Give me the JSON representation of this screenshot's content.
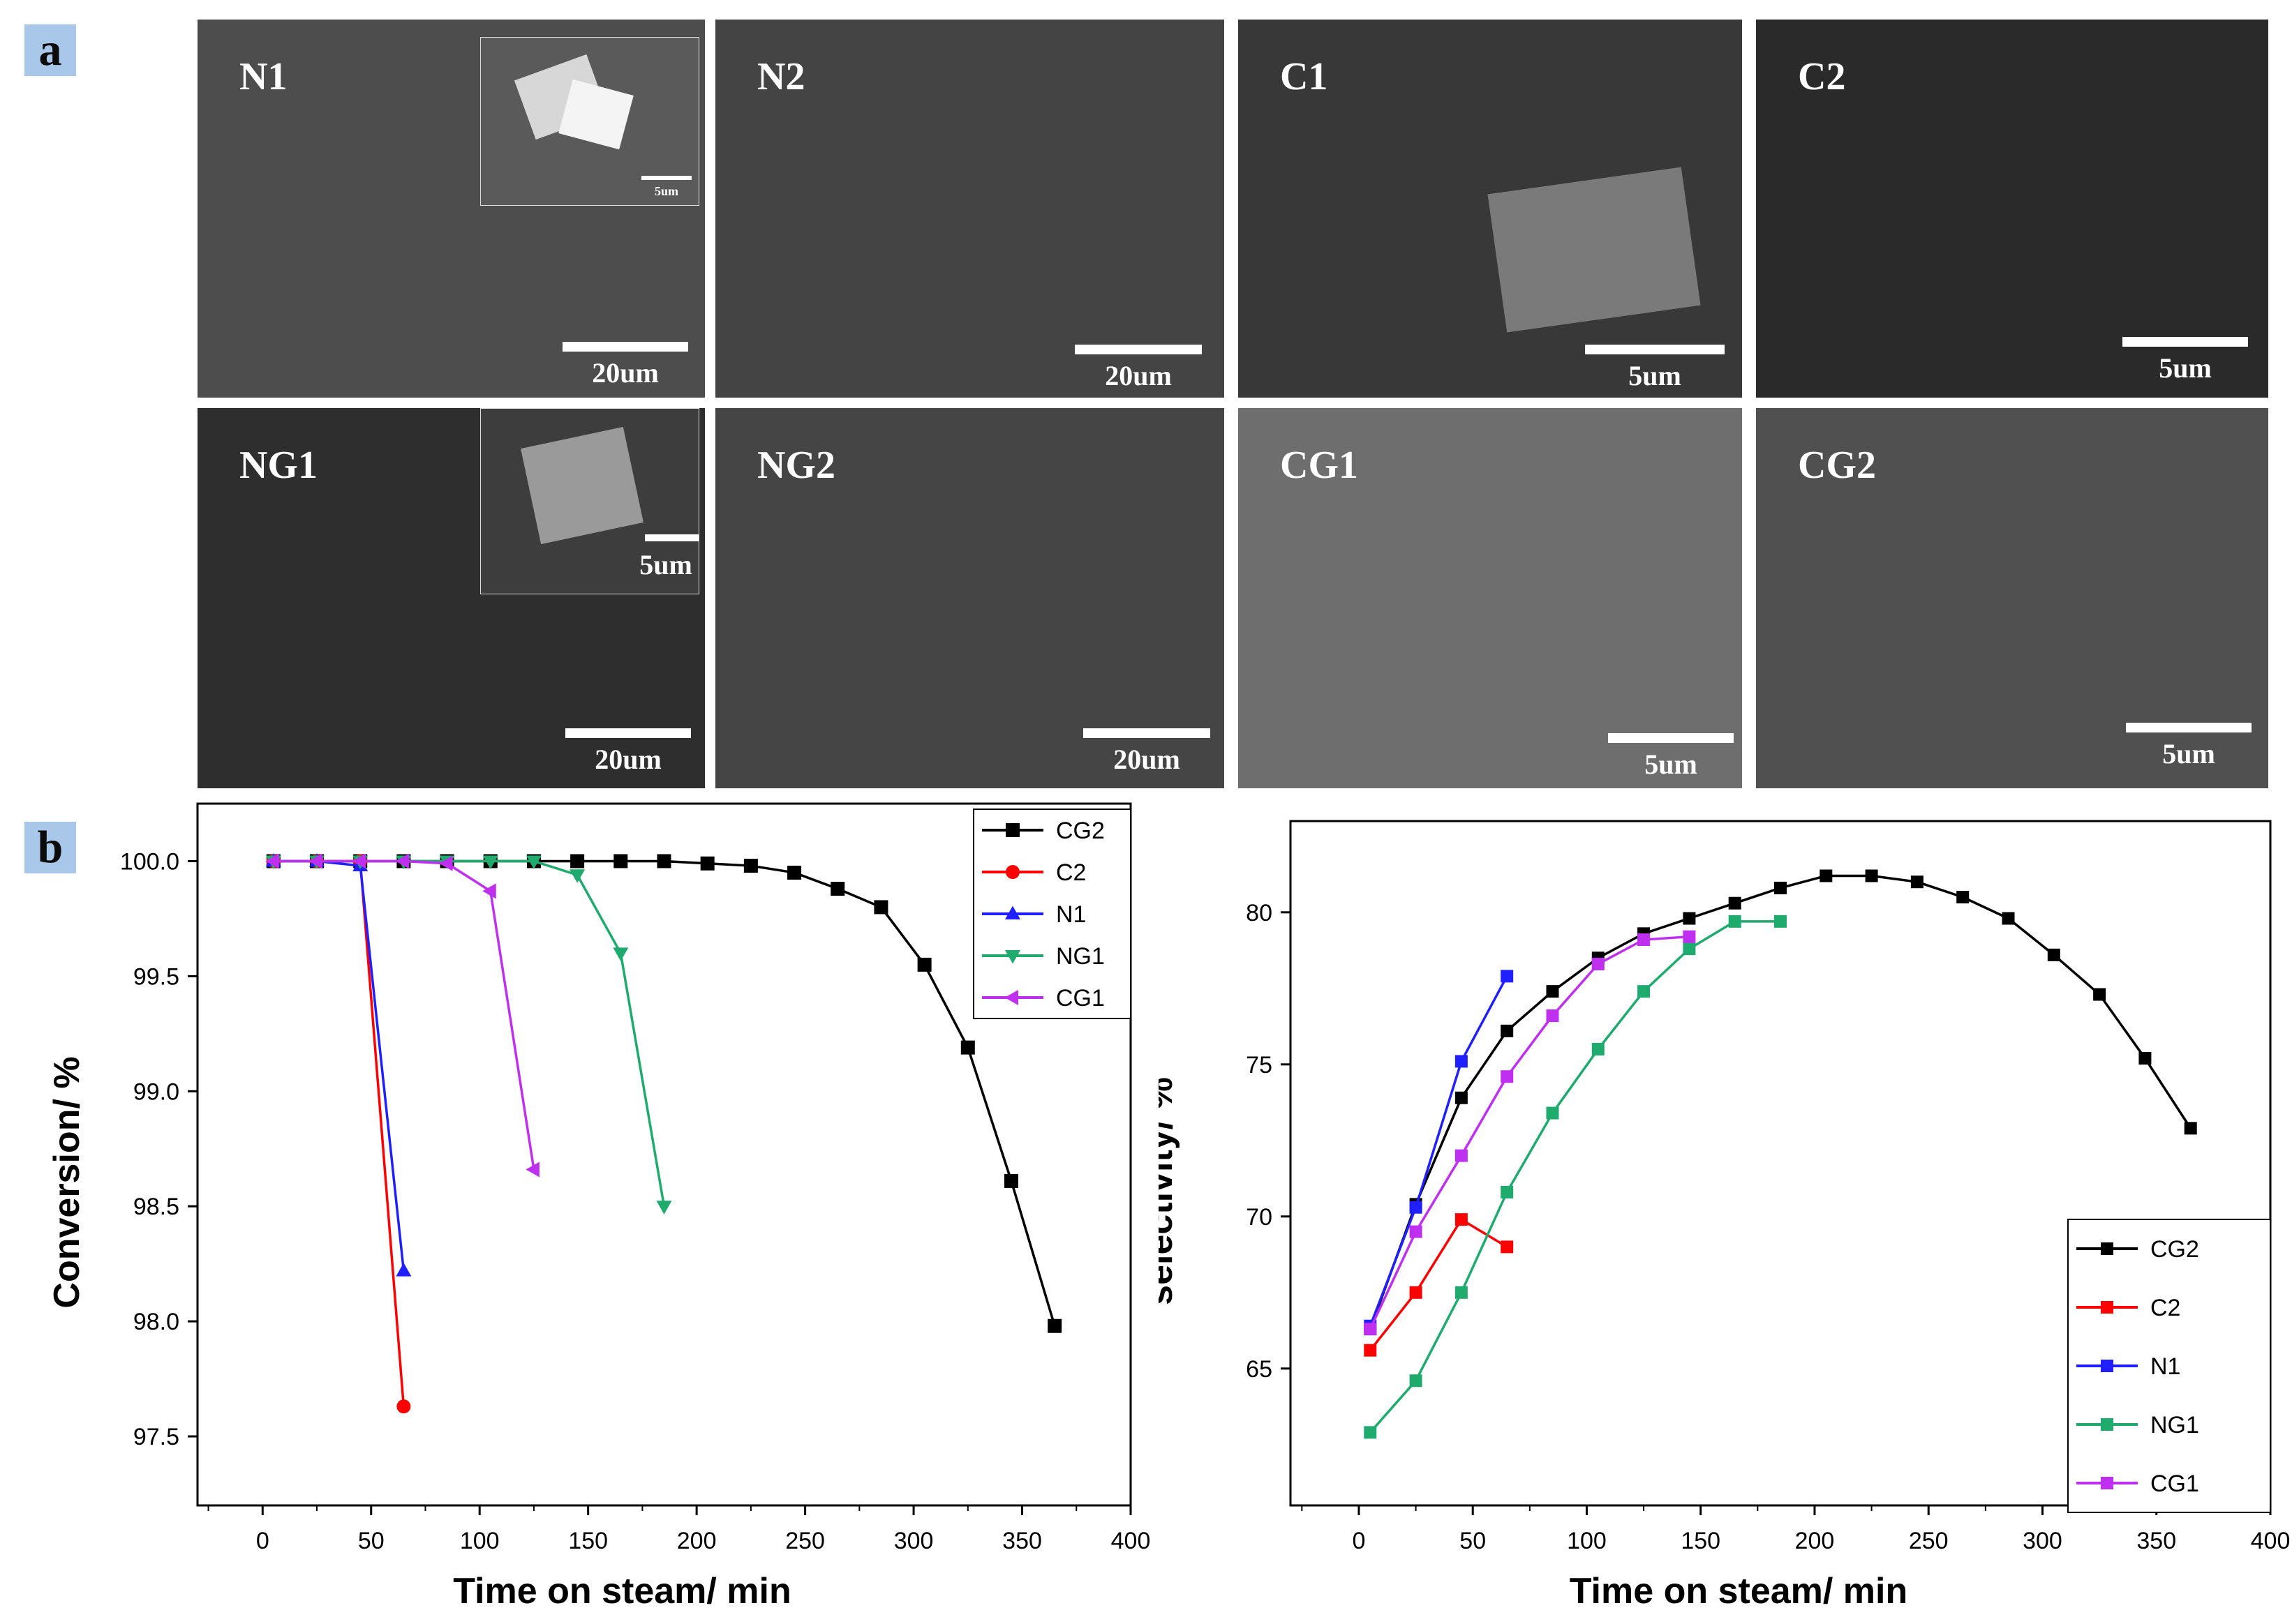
{
  "panel_a": {
    "label": "a",
    "micrographs": [
      {
        "name": "N1",
        "scale": "20um",
        "inset_scale": "5um"
      },
      {
        "name": "N2",
        "scale": "20um"
      },
      {
        "name": "C1",
        "scale": "5um"
      },
      {
        "name": "C2",
        "scale": "5um"
      },
      {
        "name": "NG1",
        "scale": "20um",
        "inset_scale": "5um"
      },
      {
        "name": "NG2",
        "scale": "20um"
      },
      {
        "name": "CG1",
        "scale": "5um"
      },
      {
        "name": "CG2",
        "scale": "5um"
      }
    ]
  },
  "panel_b": {
    "label": "b"
  },
  "chart_data": [
    {
      "type": "line",
      "xlabel": "Time on steam/ min",
      "ylabel": "Conversion/ %",
      "xlim": [
        -30,
        400
      ],
      "ylim": [
        97.2,
        100.25
      ],
      "xticks": [
        0,
        50,
        100,
        150,
        200,
        250,
        300,
        350,
        400
      ],
      "yticks": [
        97.5,
        98.0,
        98.5,
        99.0,
        99.5,
        100.0
      ],
      "ytick_labels": [
        "97.5",
        "98.0",
        "98.5",
        "99.0",
        "99.5",
        "100.0"
      ],
      "legend_position": "top-right",
      "series": [
        {
          "name": "CG2",
          "color": "#000000",
          "marker": "square",
          "x": [
            5,
            25,
            45,
            65,
            85,
            105,
            125,
            145,
            165,
            185,
            205,
            225,
            245,
            265,
            285,
            305,
            325,
            345,
            365
          ],
          "y": [
            100,
            100,
            100,
            100,
            100,
            100,
            100,
            100,
            100,
            100,
            99.99,
            99.98,
            99.95,
            99.88,
            99.8,
            99.55,
            99.19,
            98.61,
            97.98
          ]
        },
        {
          "name": "C2",
          "color": "#ff0000",
          "marker": "circle",
          "x": [
            5,
            25,
            45,
            65
          ],
          "y": [
            100,
            100,
            100,
            97.63
          ]
        },
        {
          "name": "N1",
          "color": "#1f1fff",
          "marker": "triangle-up",
          "x": [
            5,
            25,
            45,
            65
          ],
          "y": [
            100,
            100,
            99.98,
            98.22
          ]
        },
        {
          "name": "NG1",
          "color": "#1faa6e",
          "marker": "triangle-down",
          "x": [
            5,
            25,
            45,
            65,
            85,
            105,
            125,
            145,
            165,
            185
          ],
          "y": [
            100,
            100,
            100,
            100,
            100,
            100,
            100,
            99.94,
            99.6,
            98.5
          ]
        },
        {
          "name": "CG1",
          "color": "#bf2ff0",
          "marker": "triangle-left",
          "x": [
            5,
            25,
            45,
            65,
            85,
            105,
            125
          ],
          "y": [
            100,
            100,
            100,
            100,
            99.99,
            99.87,
            98.66
          ]
        }
      ]
    },
    {
      "type": "line",
      "xlabel": "Time on steam/ min",
      "ylabel": "selectivity/ %",
      "xlim": [
        -30,
        400
      ],
      "ylim": [
        60.5,
        83
      ],
      "xticks": [
        0,
        50,
        100,
        150,
        200,
        250,
        300,
        350,
        400
      ],
      "yticks": [
        65,
        70,
        75,
        80
      ],
      "ytick_labels": [
        "65",
        "70",
        "75",
        "80"
      ],
      "legend_position": "bottom-right",
      "series": [
        {
          "name": "CG2",
          "color": "#000000",
          "marker": "square",
          "x": [
            5,
            25,
            45,
            65,
            85,
            105,
            125,
            145,
            165,
            185,
            205,
            225,
            245,
            265,
            285,
            305,
            325,
            345,
            365
          ],
          "y": [
            66.3,
            70.4,
            73.9,
            76.1,
            77.4,
            78.5,
            79.3,
            79.8,
            80.3,
            80.8,
            81.2,
            81.2,
            81.0,
            80.5,
            79.8,
            78.6,
            77.3,
            75.2,
            72.9
          ]
        },
        {
          "name": "C2",
          "color": "#ff0000",
          "marker": "square",
          "x": [
            5,
            25,
            45,
            65
          ],
          "y": [
            65.6,
            67.5,
            69.9,
            69.0
          ]
        },
        {
          "name": "N1",
          "color": "#1f1fff",
          "marker": "square",
          "x": [
            5,
            25,
            45,
            65
          ],
          "y": [
            66.4,
            70.3,
            75.1,
            77.9
          ]
        },
        {
          "name": "NG1",
          "color": "#1faa6e",
          "marker": "square",
          "x": [
            5,
            25,
            45,
            65,
            85,
            105,
            125,
            145,
            165,
            185
          ],
          "y": [
            62.9,
            64.6,
            67.5,
            70.8,
            73.4,
            75.5,
            77.4,
            78.8,
            79.7,
            79.7
          ]
        },
        {
          "name": "CG1",
          "color": "#bf2ff0",
          "marker": "square",
          "x": [
            5,
            25,
            45,
            65,
            85,
            105,
            125,
            145
          ],
          "y": [
            66.3,
            69.5,
            72.0,
            74.6,
            76.6,
            78.3,
            79.1,
            79.2
          ]
        }
      ]
    }
  ]
}
